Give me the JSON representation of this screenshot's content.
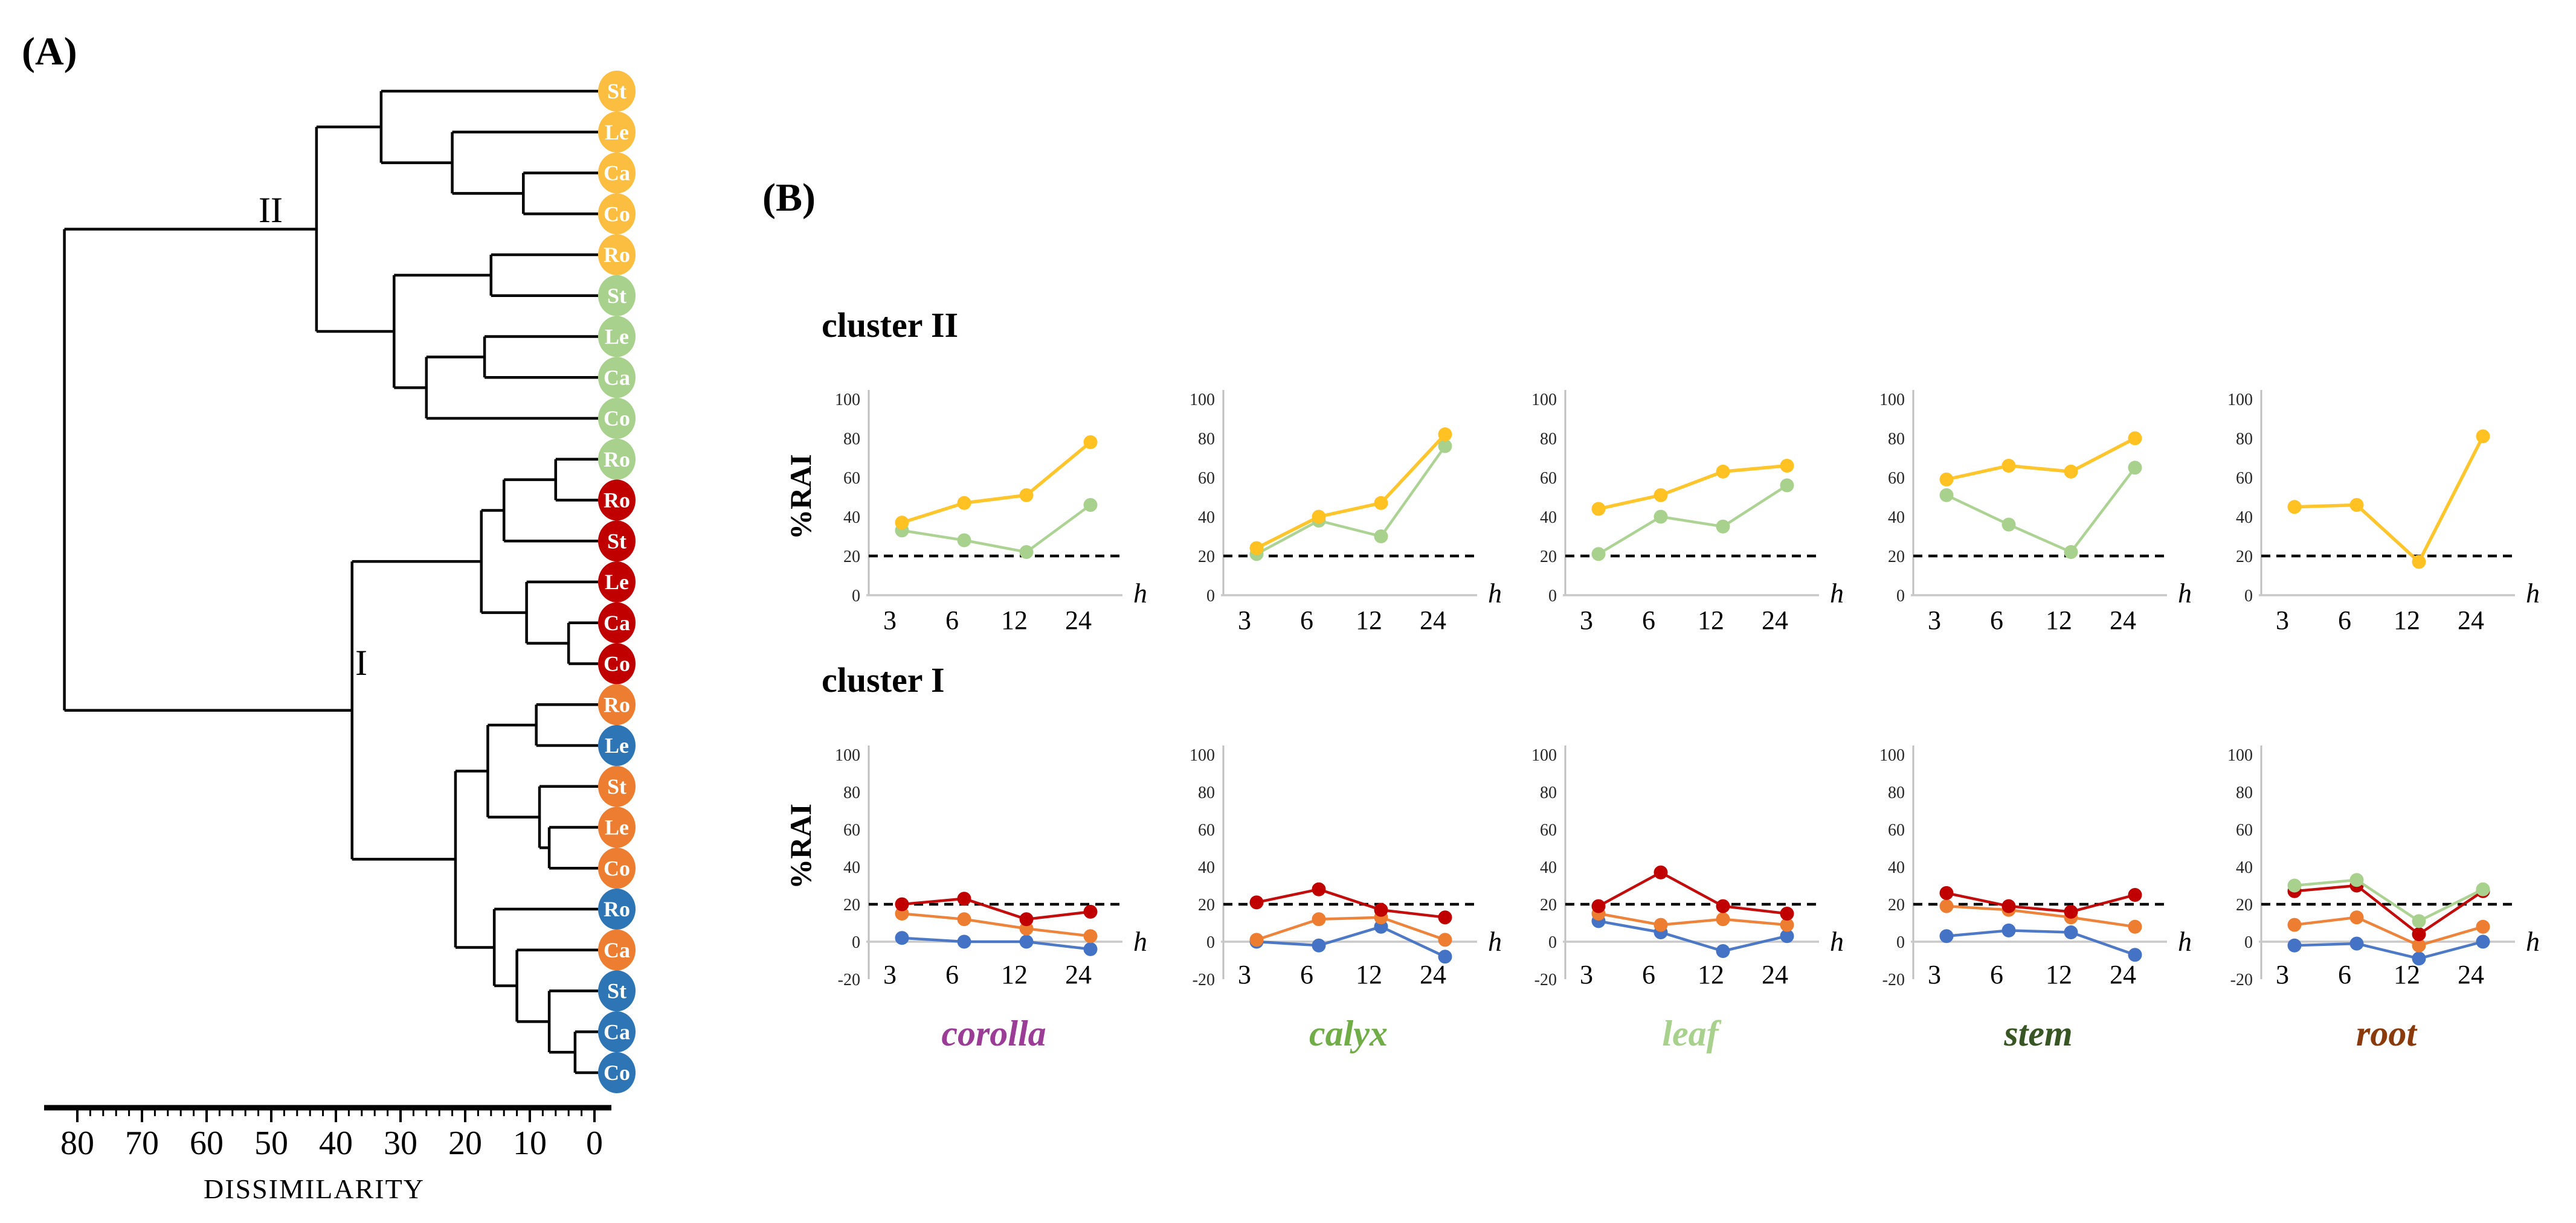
{
  "figure_labels": {
    "panel_a": "(A)",
    "panel_b": "(B)"
  },
  "dendrogram": {
    "axis": {
      "title": "DISSIMILARITY",
      "tick_labels": [
        80,
        70,
        60,
        50,
        40,
        30,
        20,
        10,
        0
      ],
      "minor_tick_step": 2,
      "max": 80
    },
    "cluster_labels": [
      {
        "text": "II"
      },
      {
        "text": "I"
      }
    ],
    "group_colors": {
      "yellow": "#FBBE41",
      "green": "#A9D18E",
      "red": "#C00000",
      "orange": "#ED7D31",
      "blue": "#2E75B6"
    },
    "leaves": [
      {
        "label": "St",
        "group": "yellow"
      },
      {
        "label": "Le",
        "group": "yellow"
      },
      {
        "label": "Ca",
        "group": "yellow"
      },
      {
        "label": "Co",
        "group": "yellow"
      },
      {
        "label": "Ro",
        "group": "yellow"
      },
      {
        "label": "St",
        "group": "green"
      },
      {
        "label": "Le",
        "group": "green"
      },
      {
        "label": "Ca",
        "group": "green"
      },
      {
        "label": "Co",
        "group": "green"
      },
      {
        "label": "Ro",
        "group": "green"
      },
      {
        "label": "Ro",
        "group": "red"
      },
      {
        "label": "St",
        "group": "red"
      },
      {
        "label": "Le",
        "group": "red"
      },
      {
        "label": "Ca",
        "group": "red"
      },
      {
        "label": "Co",
        "group": "red"
      },
      {
        "label": "Ro",
        "group": "orange"
      },
      {
        "label": "Le",
        "group": "blue"
      },
      {
        "label": "St",
        "group": "orange"
      },
      {
        "label": "Le",
        "group": "orange"
      },
      {
        "label": "Co",
        "group": "orange"
      },
      {
        "label": "Ro",
        "group": "blue"
      },
      {
        "label": "Ca",
        "group": "orange"
      },
      {
        "label": "St",
        "group": "blue"
      },
      {
        "label": "Ca",
        "group": "blue"
      },
      {
        "label": "Co",
        "group": "blue"
      }
    ],
    "merges": [
      [
        "L2",
        "L3",
        11
      ],
      [
        "L1",
        "M0",
        22
      ],
      [
        "L0",
        "M1",
        33
      ],
      [
        "L4",
        "L5",
        16
      ],
      [
        "L6",
        "L7",
        17
      ],
      [
        "M4",
        "L8",
        26
      ],
      [
        "M3",
        "M5",
        31
      ],
      [
        "M2",
        "M6",
        43
      ],
      [
        "L9",
        "L10",
        6
      ],
      [
        "M8",
        "L11",
        14
      ],
      [
        "L13",
        "L14",
        4
      ],
      [
        "L12",
        "M10",
        10.5
      ],
      [
        "M9",
        "M11",
        17.5
      ],
      [
        "L15",
        "L16",
        9
      ],
      [
        "L18",
        "L19",
        7
      ],
      [
        "L17",
        "M14",
        8.5
      ],
      [
        "M13",
        "M15",
        16.5
      ],
      [
        "L23",
        "L24",
        3
      ],
      [
        "L22",
        "M17",
        7
      ],
      [
        "L21",
        "M18",
        12
      ],
      [
        "L20",
        "M19",
        15.5
      ],
      [
        "M16",
        "M20",
        21.5
      ],
      [
        "M12",
        "M21",
        37.5
      ],
      [
        "M7",
        "M22",
        82
      ]
    ]
  },
  "charts_meta": {
    "y_axis_label": "%RAI",
    "x_axis_label": "h",
    "x_values": [
      3,
      6,
      12,
      24
    ],
    "threshold": 20,
    "series_colors": {
      "yellow": "#FFC222",
      "green": "#A9D18E",
      "red": "#C00000",
      "orange": "#ED7D31",
      "blue": "#4472C4"
    },
    "rows_meta": [
      {
        "heading": "cluster II",
        "ylim": [
          0,
          100
        ],
        "yticks": [
          0,
          20,
          40,
          60,
          80,
          100
        ]
      },
      {
        "heading": "cluster I",
        "ylim": [
          -20,
          100
        ],
        "yticks": [
          -20,
          0,
          20,
          40,
          60,
          80,
          100
        ]
      }
    ],
    "tissue_labels": [
      {
        "text": "corolla",
        "color": "#9B3D96"
      },
      {
        "text": "calyx",
        "color": "#70AD47"
      },
      {
        "text": "leaf",
        "color": "#A9D18E"
      },
      {
        "text": "stem",
        "color": "#375623"
      },
      {
        "text": "root",
        "color": "#8A3A0B"
      }
    ]
  },
  "chart_data": [
    {
      "type": "line",
      "row": "cluster II",
      "title": "corolla",
      "xlabel": "h",
      "ylabel": "%RAI",
      "x": [
        3,
        6,
        12,
        24
      ],
      "ylim": [
        0,
        100
      ],
      "threshold_dashed_y": 20,
      "grid": false,
      "legend": "none",
      "series": [
        {
          "name": "green",
          "values": [
            33,
            28,
            22,
            46
          ]
        },
        {
          "name": "yellow",
          "values": [
            37,
            47,
            51,
            78
          ]
        }
      ]
    },
    {
      "type": "line",
      "row": "cluster II",
      "title": "calyx",
      "xlabel": "h",
      "ylabel": "%RAI",
      "x": [
        3,
        6,
        12,
        24
      ],
      "ylim": [
        0,
        100
      ],
      "threshold_dashed_y": 20,
      "grid": false,
      "legend": "none",
      "series": [
        {
          "name": "green",
          "values": [
            21,
            38,
            30,
            76
          ]
        },
        {
          "name": "yellow",
          "values": [
            24,
            40,
            47,
            82
          ]
        }
      ]
    },
    {
      "type": "line",
      "row": "cluster II",
      "title": "leaf",
      "xlabel": "h",
      "ylabel": "%RAI",
      "x": [
        3,
        6,
        12,
        24
      ],
      "ylim": [
        0,
        100
      ],
      "threshold_dashed_y": 20,
      "grid": false,
      "legend": "none",
      "series": [
        {
          "name": "green",
          "values": [
            21,
            40,
            35,
            56
          ]
        },
        {
          "name": "yellow",
          "values": [
            44,
            51,
            63,
            66
          ]
        }
      ]
    },
    {
      "type": "line",
      "row": "cluster II",
      "title": "stem",
      "xlabel": "h",
      "ylabel": "%RAI",
      "x": [
        3,
        6,
        12,
        24
      ],
      "ylim": [
        0,
        100
      ],
      "threshold_dashed_y": 20,
      "grid": false,
      "legend": "none",
      "series": [
        {
          "name": "green",
          "values": [
            51,
            36,
            22,
            65
          ]
        },
        {
          "name": "yellow",
          "values": [
            59,
            66,
            63,
            80
          ]
        }
      ]
    },
    {
      "type": "line",
      "row": "cluster II",
      "title": "root",
      "xlabel": "h",
      "ylabel": "%RAI",
      "x": [
        3,
        6,
        12,
        24
      ],
      "ylim": [
        0,
        100
      ],
      "threshold_dashed_y": 20,
      "grid": false,
      "legend": "none",
      "series": [
        {
          "name": "yellow",
          "values": [
            45,
            46,
            17,
            81
          ]
        }
      ]
    },
    {
      "type": "line",
      "row": "cluster I",
      "title": "corolla",
      "xlabel": "h",
      "ylabel": "%RAI",
      "x": [
        3,
        6,
        12,
        24
      ],
      "ylim": [
        -20,
        100
      ],
      "threshold_dashed_y": 20,
      "grid": false,
      "legend": "none",
      "series": [
        {
          "name": "blue",
          "values": [
            2,
            0,
            0,
            -4
          ]
        },
        {
          "name": "orange",
          "values": [
            15,
            12,
            7,
            3
          ]
        },
        {
          "name": "red",
          "values": [
            20,
            23,
            12,
            16
          ]
        }
      ]
    },
    {
      "type": "line",
      "row": "cluster I",
      "title": "calyx",
      "xlabel": "h",
      "ylabel": "%RAI",
      "x": [
        3,
        6,
        12,
        24
      ],
      "ylim": [
        -20,
        100
      ],
      "threshold_dashed_y": 20,
      "grid": false,
      "legend": "none",
      "series": [
        {
          "name": "blue",
          "values": [
            0,
            -2,
            8,
            -8
          ]
        },
        {
          "name": "orange",
          "values": [
            1,
            12,
            13,
            1
          ]
        },
        {
          "name": "red",
          "values": [
            21,
            28,
            17,
            13
          ]
        }
      ]
    },
    {
      "type": "line",
      "row": "cluster I",
      "title": "leaf",
      "xlabel": "h",
      "ylabel": "%RAI",
      "x": [
        3,
        6,
        12,
        24
      ],
      "ylim": [
        -20,
        100
      ],
      "threshold_dashed_y": 20,
      "grid": false,
      "legend": "none",
      "series": [
        {
          "name": "blue",
          "values": [
            11,
            5,
            -5,
            3
          ]
        },
        {
          "name": "orange",
          "values": [
            15,
            9,
            12,
            9
          ]
        },
        {
          "name": "red",
          "values": [
            19,
            37,
            19,
            15
          ]
        }
      ]
    },
    {
      "type": "line",
      "row": "cluster I",
      "title": "stem",
      "xlabel": "h",
      "ylabel": "%RAI",
      "x": [
        3,
        6,
        12,
        24
      ],
      "ylim": [
        -20,
        100
      ],
      "threshold_dashed_y": 20,
      "grid": false,
      "legend": "none",
      "series": [
        {
          "name": "blue",
          "values": [
            3,
            6,
            5,
            -7
          ]
        },
        {
          "name": "orange",
          "values": [
            19,
            17,
            13,
            8
          ]
        },
        {
          "name": "red",
          "values": [
            26,
            19,
            16,
            25
          ]
        }
      ]
    },
    {
      "type": "line",
      "row": "cluster I",
      "title": "root",
      "xlabel": "h",
      "ylabel": "%RAI",
      "x": [
        3,
        6,
        12,
        24
      ],
      "ylim": [
        -20,
        100
      ],
      "threshold_dashed_y": 20,
      "grid": false,
      "legend": "none",
      "series": [
        {
          "name": "blue",
          "values": [
            -2,
            -1,
            -9,
            0
          ]
        },
        {
          "name": "orange",
          "values": [
            9,
            13,
            -2,
            8
          ]
        },
        {
          "name": "red",
          "values": [
            27,
            30,
            4,
            27
          ]
        },
        {
          "name": "green",
          "values": [
            30,
            33,
            11,
            28
          ]
        }
      ]
    }
  ]
}
